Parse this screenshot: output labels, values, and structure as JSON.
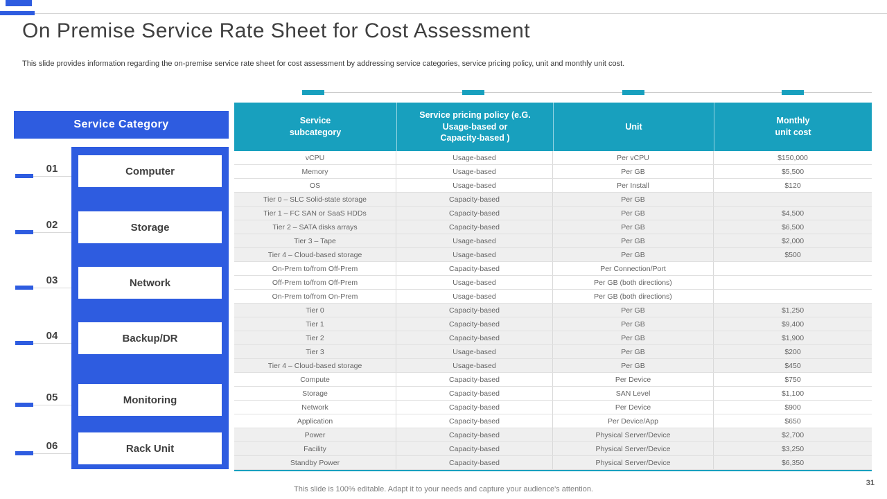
{
  "slide": {
    "title": "On Premise Service Rate Sheet for Cost Assessment",
    "subtitle": "This slide provides information regarding the on-premise service rate sheet for cost assessment by addressing service categories, service pricing policy, unit and monthly unit cost.",
    "footer": "This slide is 100% editable. Adapt it to your needs and capture your audience's attention.",
    "page_number": "31"
  },
  "colors": {
    "accent_blue": "#2E5CE0",
    "accent_teal": "#18A0BE",
    "shaded_row": "#EFEFEF"
  },
  "sidebar": {
    "header": "Service Category",
    "items": [
      {
        "number": "01",
        "label": "Computer"
      },
      {
        "number": "02",
        "label": "Storage"
      },
      {
        "number": "03",
        "label": "Network"
      },
      {
        "number": "04",
        "label": "Backup/DR"
      },
      {
        "number": "05",
        "label": "Monitoring"
      },
      {
        "number": "06",
        "label": "Rack Unit"
      }
    ]
  },
  "table": {
    "headers": [
      "Service\nsubcategory",
      "Service pricing policy (e.G.\nUsage-based or\nCapacity-based )",
      "Unit",
      "Monthly\nunit cost"
    ],
    "groups": [
      {
        "category": "Computer",
        "shaded": false,
        "rows": [
          [
            "vCPU",
            "Usage-based",
            "Per vCPU",
            "$150,000"
          ],
          [
            "Memory",
            "Usage-based",
            "Per GB",
            "$5,500"
          ],
          [
            "OS",
            "Usage-based",
            "Per Install",
            "$120"
          ]
        ]
      },
      {
        "category": "Storage",
        "shaded": true,
        "rows": [
          [
            "Tier 0 – SLC Solid-state storage",
            "Capacity-based",
            "Per GB",
            ""
          ],
          [
            "Tier 1 – FC SAN or SaaS HDDs",
            "Capacity-based",
            "Per GB",
            "$4,500"
          ],
          [
            "Tier 2 – SATA disks arrays",
            "Capacity-based",
            "Per GB",
            "$6,500"
          ],
          [
            "Tier 3 – Tape",
            "Usage-based",
            "Per GB",
            "$2,000"
          ],
          [
            "Tier 4 – Cloud-based storage",
            "Usage-based",
            "Per GB",
            "$500"
          ]
        ]
      },
      {
        "category": "Network",
        "shaded": false,
        "rows": [
          [
            "On-Prem to/from Off-Prem",
            "Capacity-based",
            "Per Connection/Port",
            ""
          ],
          [
            "Off-Prem to/from Off-Prem",
            "Usage-based",
            "Per GB (both directions)",
            ""
          ],
          [
            "On-Prem to/from On-Prem",
            "Usage-based",
            "Per GB (both directions)",
            ""
          ]
        ]
      },
      {
        "category": "Backup/DR",
        "shaded": true,
        "rows": [
          [
            "Tier 0",
            "Capacity-based",
            "Per GB",
            "$1,250"
          ],
          [
            "Tier 1",
            "Capacity-based",
            "Per GB",
            "$9,400"
          ],
          [
            "Tier 2",
            "Capacity-based",
            "Per GB",
            "$1,900"
          ],
          [
            "Tier 3",
            "Usage-based",
            "Per GB",
            "$200"
          ],
          [
            "Tier 4 – Cloud-based storage",
            "Usage-based",
            "Per GB",
            "$450"
          ]
        ]
      },
      {
        "category": "Monitoring",
        "shaded": false,
        "rows": [
          [
            "Compute",
            "Capacity-based",
            "Per Device",
            "$750"
          ],
          [
            "Storage",
            "Capacity-based",
            "SAN Level",
            "$1,100"
          ],
          [
            "Network",
            "Capacity-based",
            "Per Device",
            "$900"
          ],
          [
            "Application",
            "Capacity-based",
            "Per Device/App",
            "$650"
          ]
        ]
      },
      {
        "category": "Rack Unit",
        "shaded": true,
        "rows": [
          [
            "Power",
            "Capacity-based",
            "Physical Server/Device",
            "$2,700"
          ],
          [
            "Facility",
            "Capacity-based",
            "Physical Server/Device",
            "$3,250"
          ],
          [
            "Standby Power",
            "Capacity-based",
            "Physical Server/Device",
            "$6,350"
          ]
        ]
      }
    ]
  }
}
